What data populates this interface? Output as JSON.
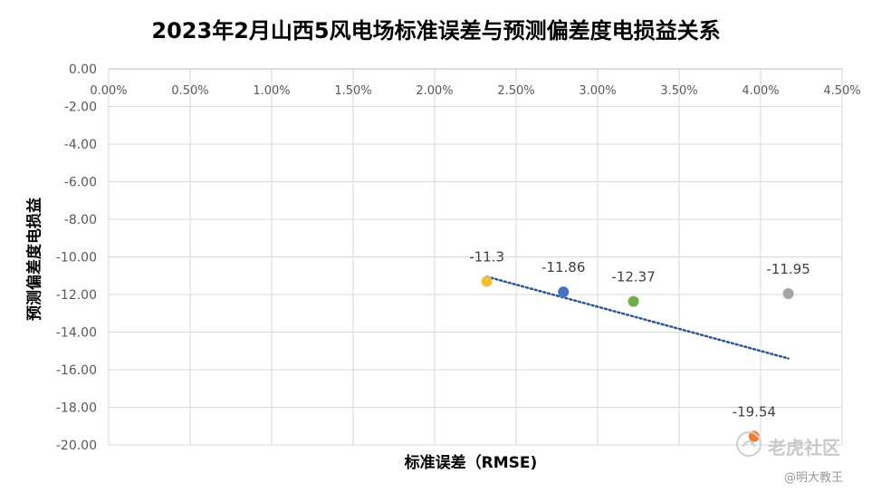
{
  "chart_data": {
    "type": "scatter",
    "title": "2023年2月山西5风电场标准误差与预测偏差度电损益关系",
    "xlabel": "标准误差（RMSE)",
    "ylabel": "预测偏差度电损益",
    "x_ticks": [
      "0.00%",
      "0.50%",
      "1.00%",
      "1.50%",
      "2.00%",
      "2.50%",
      "3.00%",
      "3.50%",
      "4.00%",
      "4.50%"
    ],
    "y_ticks": [
      "0.00",
      "-2.00",
      "-4.00",
      "-6.00",
      "-8.00",
      "-10.00",
      "-12.00",
      "-14.00",
      "-16.00",
      "-18.00",
      "-20.00"
    ],
    "xlim": [
      0,
      0.045
    ],
    "ylim": [
      -20,
      0
    ],
    "grid": true,
    "x_axis_position": "top",
    "points": [
      {
        "x": 0.0232,
        "y": -11.3,
        "label": "-11.3",
        "color": "#F2C12E"
      },
      {
        "x": 0.0279,
        "y": -11.86,
        "label": "-11.86",
        "color": "#4472C4"
      },
      {
        "x": 0.0322,
        "y": -12.37,
        "label": "-12.37",
        "color": "#70AD47"
      },
      {
        "x": 0.0396,
        "y": -19.54,
        "label": "-19.54",
        "color": "#ED7D31"
      },
      {
        "x": 0.0417,
        "y": -11.95,
        "label": "-11.95",
        "color": "#A5A5A5"
      }
    ],
    "trendline": {
      "type": "linear",
      "style": "dotted",
      "color": "#2F5597",
      "x": [
        0.0232,
        0.0417
      ],
      "y": [
        -11.05,
        -15.4
      ]
    }
  },
  "watermark": {
    "site": "老虎社区",
    "user": "@明大教王"
  }
}
